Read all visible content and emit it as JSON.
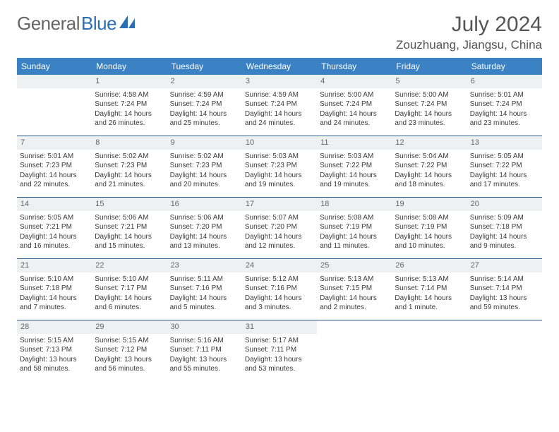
{
  "logo": {
    "text1": "General",
    "text2": "Blue"
  },
  "title": "July 2024",
  "location": "Zouzhuang, Jiangsu, China",
  "colors": {
    "header_bg": "#3b82c4",
    "header_text": "#ffffff",
    "daynum_bg": "#eef0f2",
    "row_border": "#2a5a8a",
    "body_text": "#3a3a3a",
    "title_text": "#555555"
  },
  "weekdays": [
    "Sunday",
    "Monday",
    "Tuesday",
    "Wednesday",
    "Thursday",
    "Friday",
    "Saturday"
  ],
  "weeks": [
    [
      {
        "n": "",
        "sr": "",
        "ss": "",
        "dl": ""
      },
      {
        "n": "1",
        "sr": "Sunrise: 4:58 AM",
        "ss": "Sunset: 7:24 PM",
        "dl": "Daylight: 14 hours and 26 minutes."
      },
      {
        "n": "2",
        "sr": "Sunrise: 4:59 AM",
        "ss": "Sunset: 7:24 PM",
        "dl": "Daylight: 14 hours and 25 minutes."
      },
      {
        "n": "3",
        "sr": "Sunrise: 4:59 AM",
        "ss": "Sunset: 7:24 PM",
        "dl": "Daylight: 14 hours and 24 minutes."
      },
      {
        "n": "4",
        "sr": "Sunrise: 5:00 AM",
        "ss": "Sunset: 7:24 PM",
        "dl": "Daylight: 14 hours and 24 minutes."
      },
      {
        "n": "5",
        "sr": "Sunrise: 5:00 AM",
        "ss": "Sunset: 7:24 PM",
        "dl": "Daylight: 14 hours and 23 minutes."
      },
      {
        "n": "6",
        "sr": "Sunrise: 5:01 AM",
        "ss": "Sunset: 7:24 PM",
        "dl": "Daylight: 14 hours and 23 minutes."
      }
    ],
    [
      {
        "n": "7",
        "sr": "Sunrise: 5:01 AM",
        "ss": "Sunset: 7:23 PM",
        "dl": "Daylight: 14 hours and 22 minutes."
      },
      {
        "n": "8",
        "sr": "Sunrise: 5:02 AM",
        "ss": "Sunset: 7:23 PM",
        "dl": "Daylight: 14 hours and 21 minutes."
      },
      {
        "n": "9",
        "sr": "Sunrise: 5:02 AM",
        "ss": "Sunset: 7:23 PM",
        "dl": "Daylight: 14 hours and 20 minutes."
      },
      {
        "n": "10",
        "sr": "Sunrise: 5:03 AM",
        "ss": "Sunset: 7:23 PM",
        "dl": "Daylight: 14 hours and 19 minutes."
      },
      {
        "n": "11",
        "sr": "Sunrise: 5:03 AM",
        "ss": "Sunset: 7:22 PM",
        "dl": "Daylight: 14 hours and 19 minutes."
      },
      {
        "n": "12",
        "sr": "Sunrise: 5:04 AM",
        "ss": "Sunset: 7:22 PM",
        "dl": "Daylight: 14 hours and 18 minutes."
      },
      {
        "n": "13",
        "sr": "Sunrise: 5:05 AM",
        "ss": "Sunset: 7:22 PM",
        "dl": "Daylight: 14 hours and 17 minutes."
      }
    ],
    [
      {
        "n": "14",
        "sr": "Sunrise: 5:05 AM",
        "ss": "Sunset: 7:21 PM",
        "dl": "Daylight: 14 hours and 16 minutes."
      },
      {
        "n": "15",
        "sr": "Sunrise: 5:06 AM",
        "ss": "Sunset: 7:21 PM",
        "dl": "Daylight: 14 hours and 15 minutes."
      },
      {
        "n": "16",
        "sr": "Sunrise: 5:06 AM",
        "ss": "Sunset: 7:20 PM",
        "dl": "Daylight: 14 hours and 13 minutes."
      },
      {
        "n": "17",
        "sr": "Sunrise: 5:07 AM",
        "ss": "Sunset: 7:20 PM",
        "dl": "Daylight: 14 hours and 12 minutes."
      },
      {
        "n": "18",
        "sr": "Sunrise: 5:08 AM",
        "ss": "Sunset: 7:19 PM",
        "dl": "Daylight: 14 hours and 11 minutes."
      },
      {
        "n": "19",
        "sr": "Sunrise: 5:08 AM",
        "ss": "Sunset: 7:19 PM",
        "dl": "Daylight: 14 hours and 10 minutes."
      },
      {
        "n": "20",
        "sr": "Sunrise: 5:09 AM",
        "ss": "Sunset: 7:18 PM",
        "dl": "Daylight: 14 hours and 9 minutes."
      }
    ],
    [
      {
        "n": "21",
        "sr": "Sunrise: 5:10 AM",
        "ss": "Sunset: 7:18 PM",
        "dl": "Daylight: 14 hours and 7 minutes."
      },
      {
        "n": "22",
        "sr": "Sunrise: 5:10 AM",
        "ss": "Sunset: 7:17 PM",
        "dl": "Daylight: 14 hours and 6 minutes."
      },
      {
        "n": "23",
        "sr": "Sunrise: 5:11 AM",
        "ss": "Sunset: 7:16 PM",
        "dl": "Daylight: 14 hours and 5 minutes."
      },
      {
        "n": "24",
        "sr": "Sunrise: 5:12 AM",
        "ss": "Sunset: 7:16 PM",
        "dl": "Daylight: 14 hours and 3 minutes."
      },
      {
        "n": "25",
        "sr": "Sunrise: 5:13 AM",
        "ss": "Sunset: 7:15 PM",
        "dl": "Daylight: 14 hours and 2 minutes."
      },
      {
        "n": "26",
        "sr": "Sunrise: 5:13 AM",
        "ss": "Sunset: 7:14 PM",
        "dl": "Daylight: 14 hours and 1 minute."
      },
      {
        "n": "27",
        "sr": "Sunrise: 5:14 AM",
        "ss": "Sunset: 7:14 PM",
        "dl": "Daylight: 13 hours and 59 minutes."
      }
    ],
    [
      {
        "n": "28",
        "sr": "Sunrise: 5:15 AM",
        "ss": "Sunset: 7:13 PM",
        "dl": "Daylight: 13 hours and 58 minutes."
      },
      {
        "n": "29",
        "sr": "Sunrise: 5:15 AM",
        "ss": "Sunset: 7:12 PM",
        "dl": "Daylight: 13 hours and 56 minutes."
      },
      {
        "n": "30",
        "sr": "Sunrise: 5:16 AM",
        "ss": "Sunset: 7:11 PM",
        "dl": "Daylight: 13 hours and 55 minutes."
      },
      {
        "n": "31",
        "sr": "Sunrise: 5:17 AM",
        "ss": "Sunset: 7:11 PM",
        "dl": "Daylight: 13 hours and 53 minutes."
      },
      {
        "n": "",
        "sr": "",
        "ss": "",
        "dl": ""
      },
      {
        "n": "",
        "sr": "",
        "ss": "",
        "dl": ""
      },
      {
        "n": "",
        "sr": "",
        "ss": "",
        "dl": ""
      }
    ]
  ]
}
